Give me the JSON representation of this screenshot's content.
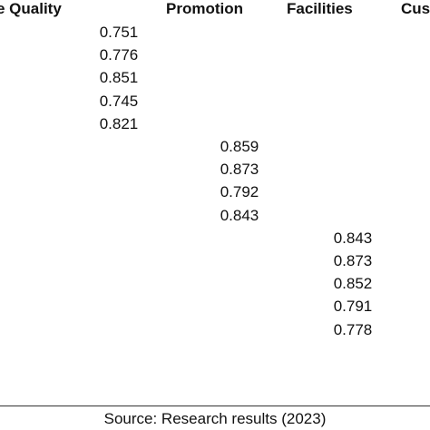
{
  "table": {
    "columns": [
      {
        "header": "e Quality",
        "values": [
          "0.751",
          "0.776",
          "0.851",
          "0.745",
          "0.821"
        ]
      },
      {
        "header": "Promotion",
        "values": [
          "0.859",
          "0.873",
          "0.792",
          "0.843"
        ]
      },
      {
        "header": "Facilities",
        "values": [
          "0.843",
          "0.873",
          "0.852",
          "0.791",
          "0.778"
        ]
      },
      {
        "header": "Cus"
      }
    ]
  },
  "footer": {
    "source": "Source: Research results (2023)"
  }
}
